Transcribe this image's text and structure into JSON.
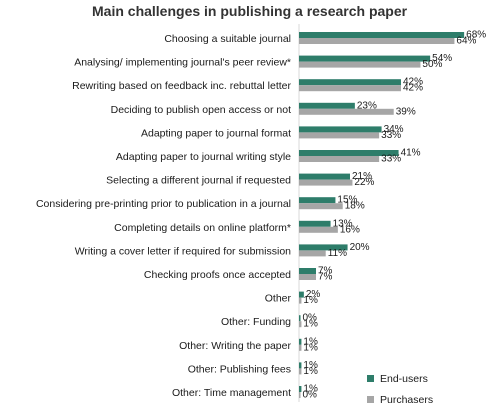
{
  "chart_data": {
    "type": "bar",
    "orientation": "horizontal",
    "title": "Main challenges in publishing a research paper",
    "xlabel": "",
    "ylabel": "",
    "xlim": [
      0,
      70
    ],
    "grid": false,
    "legend_position": "bottom-right",
    "categories": [
      "Choosing a suitable journal",
      "Analysing/ implementing journal's peer review*",
      "Rewriting based on feedback inc. rebuttal letter",
      "Deciding to publish open access or not",
      "Adapting paper to journal format",
      "Adapting paper to journal writing style",
      "Selecting a different journal if requested",
      "Considering pre-printing prior to publication in a journal",
      "Completing details on online platform*",
      "Writing a cover letter if required for submission",
      "Checking proofs once accepted",
      "Other",
      "Other: Funding",
      "Other: Writing the paper",
      "Other: Publishing fees",
      "Other: Time management"
    ],
    "series": [
      {
        "name": "End-users",
        "color": "#2e7d6a",
        "values": [
          68,
          54,
          42,
          23,
          34,
          41,
          21,
          15,
          13,
          20,
          7,
          2,
          0,
          1,
          1,
          1
        ],
        "labels": [
          "68%",
          "54%",
          "42%",
          "23%",
          "34%",
          "41%",
          "21%",
          "15%",
          "13%",
          "20%",
          "7%",
          "2%",
          "0%",
          "1%",
          "1%",
          "1%"
        ]
      },
      {
        "name": "Purchasers",
        "color": "#a6a6a6",
        "values": [
          64,
          50,
          42,
          39,
          33,
          33,
          22,
          18,
          16,
          11,
          7,
          1,
          1,
          1,
          1,
          0
        ],
        "labels": [
          "64%",
          "50%",
          "42%",
          "39%",
          "33%",
          "33%",
          "22%",
          "18%",
          "16%",
          "11%",
          "7%",
          "1%",
          "1%",
          "1%",
          "1%",
          "0%"
        ]
      }
    ]
  }
}
